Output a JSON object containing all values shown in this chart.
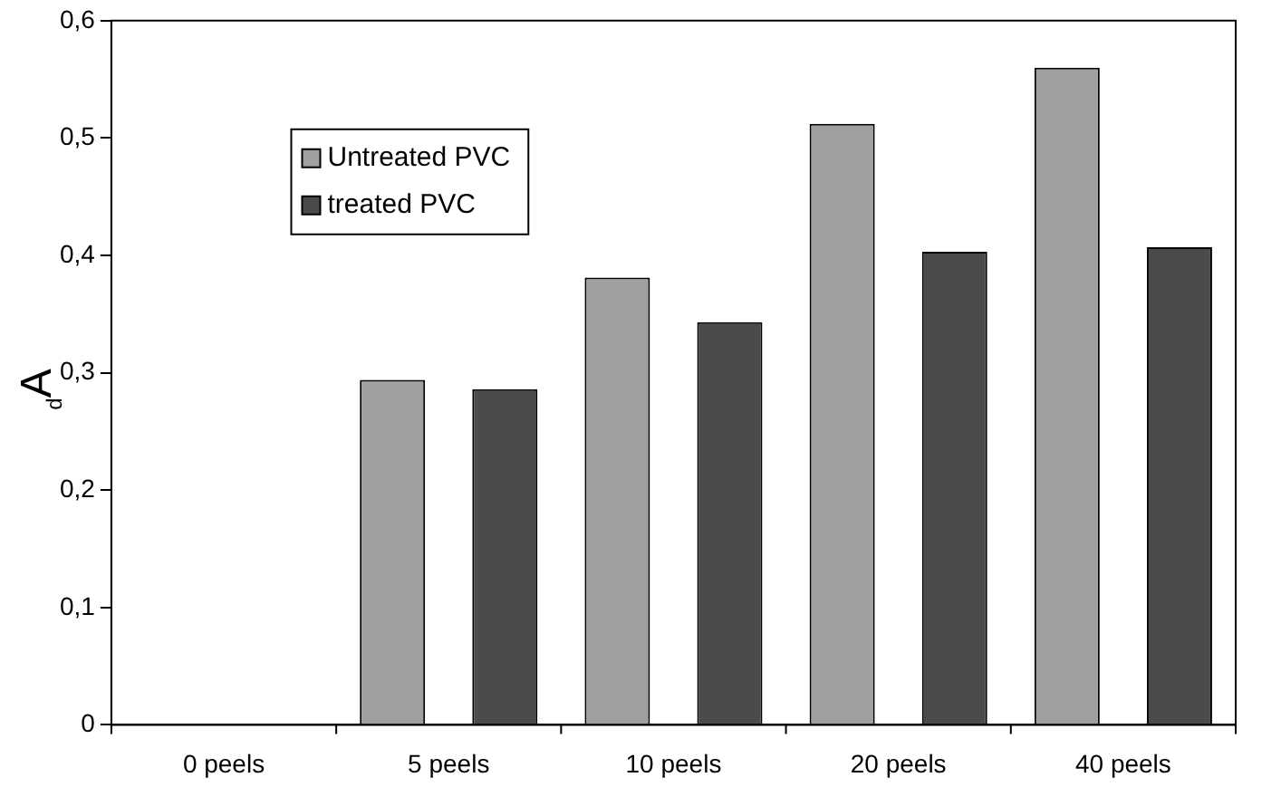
{
  "chart_data": {
    "type": "bar",
    "ylabel": "$_{d}$A",
    "categories": [
      "0 peels",
      "5 peels",
      "10 peels",
      "20 peels",
      "40 peels"
    ],
    "series": [
      {
        "name": "Untreated PVC",
        "color": "#a0a0a0",
        "values": [
          0,
          0.294,
          0.381,
          0.512,
          0.56
        ]
      },
      {
        "name": "treated PVC",
        "color": "#4b4b4b",
        "values": [
          0,
          0.286,
          0.343,
          0.403,
          0.407
        ]
      }
    ],
    "ylim": [
      0,
      0.6
    ],
    "yticks": [
      0,
      {
        "value": 0.1,
        "label": "0,1"
      },
      {
        "value": 0.2,
        "label": "0,2"
      },
      {
        "value": 0.3,
        "label": "0,3"
      },
      {
        "value": 0.4,
        "label": "0,4"
      },
      {
        "value": 0.5,
        "label": "0,5"
      },
      {
        "value": 0.6,
        "label": "0,6"
      }
    ],
    "grid": false,
    "legend": "top left"
  }
}
